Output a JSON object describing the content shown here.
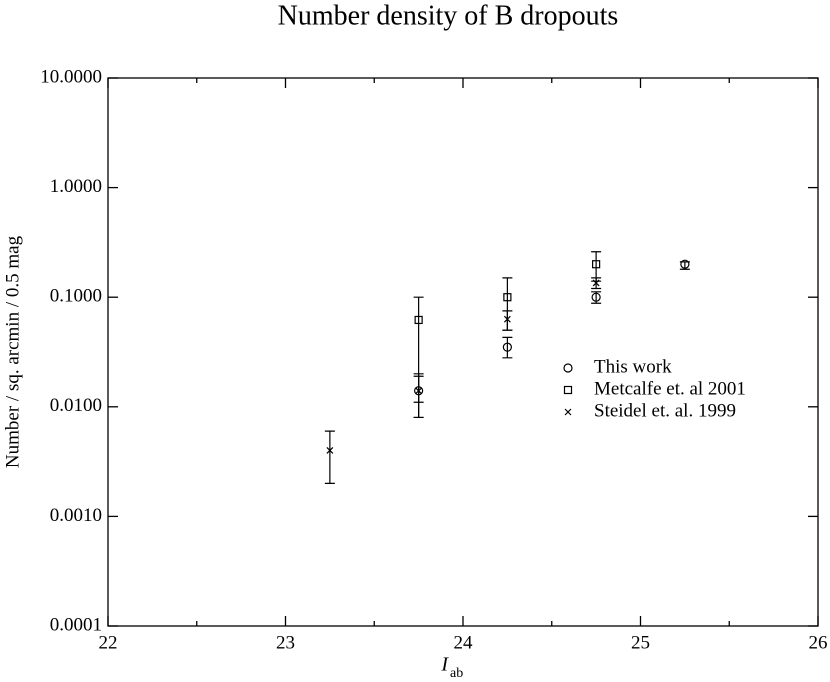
{
  "chart_data": {
    "type": "scatter",
    "title": "Number density of B dropouts",
    "x_label": "I",
    "x_label_sub": "ab",
    "y_label": "Number / sq. arcmin / 0.5 mag",
    "xlim": [
      22,
      26
    ],
    "xticks": [
      22,
      23,
      24,
      25,
      26
    ],
    "xminor": [
      22.5,
      23.5,
      24.5,
      25.5
    ],
    "ylim": [
      0.0001,
      10
    ],
    "ylog": true,
    "yticks": [
      {
        "value": 10,
        "label": "10.0000"
      },
      {
        "value": 1,
        "label": "1.0000"
      },
      {
        "value": 0.1,
        "label": "0.1000"
      },
      {
        "value": 0.01,
        "label": "0.0100"
      },
      {
        "value": 0.001,
        "label": "0.0010"
      },
      {
        "value": 0.0001,
        "label": "0.0001"
      }
    ],
    "legend": "right",
    "series": [
      {
        "name": "This work",
        "marker": "circle",
        "color": "#000000",
        "x": [
          23.75,
          24.25,
          24.75,
          25.25
        ],
        "values": [
          0.014,
          0.035,
          0.1,
          0.2
        ],
        "low": [
          0.011,
          0.028,
          0.088,
          0.18
        ],
        "high": [
          0.019,
          0.043,
          0.112,
          0.21
        ]
      },
      {
        "name": "Metcalfe et. al 2001",
        "marker": "square",
        "color": "#000000",
        "x": [
          23.75,
          24.25,
          24.75
        ],
        "values": [
          0.062,
          0.1,
          0.2
        ],
        "low": [
          0.008,
          0.05,
          0.14
        ],
        "high": [
          0.1,
          0.15,
          0.26
        ]
      },
      {
        "name": "Steidel et. al. 1999",
        "marker": "cross",
        "color": "#000000",
        "x": [
          23.25,
          23.75,
          24.25,
          24.75
        ],
        "values": [
          0.004,
          0.014,
          0.063,
          0.135
        ],
        "low": [
          0.002,
          0.008,
          0.05,
          0.12
        ],
        "high": [
          0.006,
          0.02,
          0.075,
          0.15
        ]
      }
    ]
  }
}
